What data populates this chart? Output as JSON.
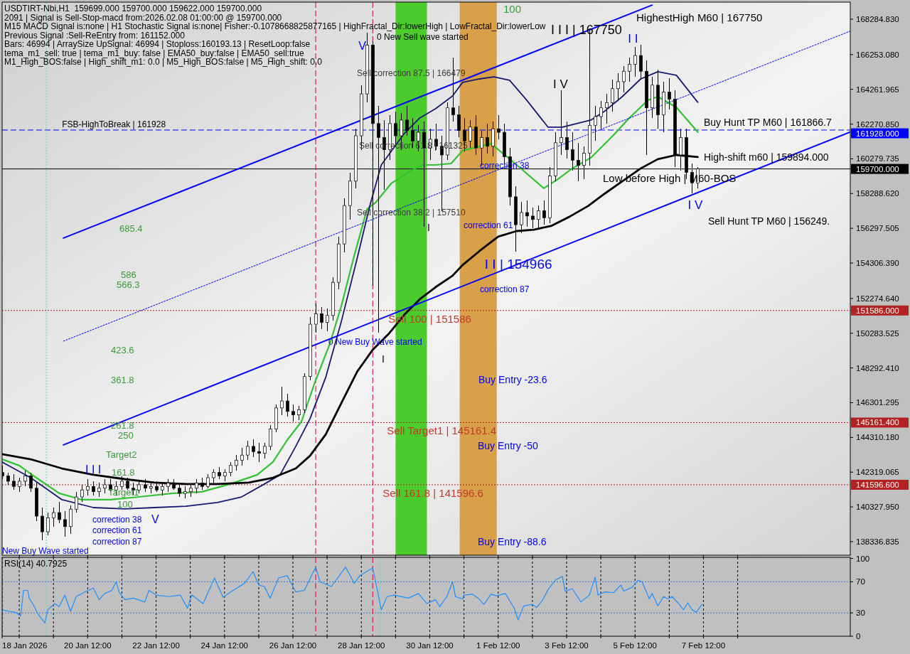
{
  "chart_data": [
    {
      "type": "candlestick",
      "title": "USDTIRT-Nbi,H1  159699.000 159700.000 159622.000 159700.000",
      "color": "#000000",
      "annotations": [
        "2091 | Signal is Sell-Stop-macd from:2026.02.08 01:00:00 @ 159700.000",
        "M15 MACD Signal is:none | H1 Stochastic Signal is:none| Fisher:-0.1078668825877165 | HighFractal_Dir:lowerHigh | LowFractal_Dir:lowerLow",
        "Previous Signal :Sell-ReEntry from: 161152.000",
        "Bars: 46994 | ArraySize UpSignal: 46994 | Stoploss:160193.13 | ResetLoop:false",
        "tema_m1_sell: true | tema_m1_buy: false | EMA50_buy:false | EMA50_sell:true",
        "M1_High_BOS:false | High_shift_m1: 0.0 | M5_High_BOS:false | M5_High_shift: 0.0",
        "0 New Sell wave started",
        "Sell correction 87.5 | 166479",
        "Sell correction 61.8 | 161325",
        "Sell correction 38.2 | 157510",
        "685.4",
        "586",
        "566.3",
        "423.6",
        "361.8",
        "261.8",
        "250",
        "Target2",
        "I I I",
        "161.8",
        "Target1",
        "100",
        "correction 38",
        "V",
        "correction 61",
        "correction 87",
        "New Buy Wave started",
        "0 New Buy Wave started",
        "I",
        "I",
        "correction 38",
        "correction 61",
        "correction 87",
        "Buy Entry -23.6",
        "Buy Entry -50",
        "Buy Entry -88.6",
        "100",
        "Low before High | M60-BOS",
        "High-shift m60 | 159894.000",
        "Buy Hunt TP M60 | 161866.7",
        "Sell Hunt TP M60 | 156249.",
        "HighestHigh M60 | 167750",
        {
          "text": "V",
          "x": "2026-01-28T16:00",
          "y": 167500
        },
        {
          "text": "FSB-HighToBreak | 161928",
          "x": "2026-01-19T18:00",
          "y": 161928
        },
        {
          "text": "Sell 100 | 151586",
          "x": "2026-01-29T07:00",
          "y": 151586
        },
        {
          "text": "Sell Target1 | 145161.4",
          "x": "2026-01-29T06:00",
          "y": 145161.4
        },
        {
          "text": "Sell 161.8 | 141596.6",
          "x": "2026-01-29T03:00",
          "y": 141596.6
        },
        {
          "text": "I I | 154966",
          "x": "2026-02-02T00:00",
          "y": 154966
        },
        {
          "text": "I I I | 167750",
          "x": "2026-02-04T04:00",
          "y": 167750
        },
        {
          "text": "I V",
          "x": "2026-02-03T08:00",
          "y": 164200
        },
        {
          "text": "I I",
          "x": "2026-02-05T12:00",
          "y": 166700
        },
        {
          "text": "I V",
          "x": "2026-02-07T04:00",
          "y": 158300
        }
      ],
      "x": [
        "2026-01-18T00:00",
        "2026-01-18T04:00",
        "2026-01-18T08:00",
        "2026-01-18T12:00",
        "2026-01-18T16:00",
        "2026-01-18T20:00",
        "2026-01-19T00:00",
        "2026-01-19T04:00",
        "2026-01-19T08:00",
        "2026-01-19T12:00",
        "2026-01-19T16:00",
        "2026-01-19T20:00",
        "2026-01-20T00:00",
        "2026-01-20T04:00",
        "2026-01-20T08:00",
        "2026-01-20T12:00",
        "2026-01-20T16:00",
        "2026-01-20T20:00",
        "2026-01-21T00:00",
        "2026-01-21T04:00",
        "2026-01-21T08:00",
        "2026-01-21T12:00",
        "2026-01-21T16:00",
        "2026-01-21T20:00",
        "2026-01-22T00:00",
        "2026-01-22T04:00",
        "2026-01-22T08:00",
        "2026-01-22T12:00",
        "2026-01-22T16:00",
        "2026-01-22T20:00",
        "2026-01-23T00:00",
        "2026-01-23T04:00",
        "2026-01-23T08:00",
        "2026-01-23T12:00",
        "2026-01-23T16:00",
        "2026-01-23T20:00",
        "2026-01-24T00:00",
        "2026-01-24T04:00",
        "2026-01-24T08:00",
        "2026-01-24T12:00",
        "2026-01-24T16:00",
        "2026-01-24T20:00",
        "2026-01-25T00:00",
        "2026-01-25T04:00",
        "2026-01-25T08:00",
        "2026-01-25T12:00",
        "2026-01-25T16:00",
        "2026-01-25T20:00",
        "2026-01-26T00:00",
        "2026-01-26T04:00",
        "2026-01-26T08:00",
        "2026-01-26T12:00",
        "2026-01-26T16:00",
        "2026-01-26T20:00",
        "2026-01-27T00:00",
        "2026-01-27T04:00",
        "2026-01-27T08:00",
        "2026-01-27T12:00",
        "2026-01-27T16:00",
        "2026-01-27T20:00",
        "2026-01-28T00:00",
        "2026-01-28T04:00",
        "2026-01-28T08:00",
        "2026-01-28T12:00",
        "2026-01-28T16:00",
        "2026-01-28T20:00",
        "2026-01-29T00:00",
        "2026-01-29T04:00",
        "2026-01-29T08:00",
        "2026-01-29T12:00",
        "2026-01-29T16:00",
        "2026-01-29T20:00",
        "2026-01-30T00:00",
        "2026-01-30T04:00",
        "2026-01-30T08:00",
        "2026-01-30T12:00",
        "2026-01-30T16:00",
        "2026-01-30T20:00",
        "2026-01-31T00:00",
        "2026-01-31T04:00",
        "2026-01-31T08:00",
        "2026-01-31T12:00",
        "2026-01-31T16:00",
        "2026-01-31T20:00",
        "2026-02-01T00:00",
        "2026-02-01T04:00",
        "2026-02-01T08:00",
        "2026-02-01T12:00",
        "2026-02-01T16:00",
        "2026-02-01T20:00",
        "2026-02-02T00:00",
        "2026-02-02T04:00",
        "2026-02-02T08:00",
        "2026-02-02T12:00",
        "2026-02-02T16:00",
        "2026-02-02T20:00",
        "2026-02-03T00:00",
        "2026-02-03T04:00",
        "2026-02-03T08:00",
        "2026-02-03T12:00",
        "2026-02-03T16:00",
        "2026-02-03T20:00",
        "2026-02-04T00:00",
        "2026-02-04T04:00",
        "2026-02-04T08:00",
        "2026-02-04T12:00",
        "2026-02-04T16:00",
        "2026-02-04T20:00",
        "2026-02-05T00:00",
        "2026-02-05T04:00",
        "2026-02-05T08:00",
        "2026-02-05T12:00",
        "2026-02-05T16:00",
        "2026-02-05T20:00",
        "2026-02-06T00:00",
        "2026-02-06T04:00",
        "2026-02-06T08:00",
        "2026-02-06T12:00",
        "2026-02-06T16:00",
        "2026-02-06T20:00",
        "2026-02-07T00:00",
        "2026-02-07T04:00",
        "2026-02-07T08:00"
      ],
      "ohlc": [
        [
          142300,
          142700,
          141900,
          142100
        ],
        [
          142100,
          142300,
          141600,
          141800
        ],
        [
          141800,
          142200,
          141300,
          141500
        ],
        [
          141500,
          142000,
          141200,
          141800
        ],
        [
          141800,
          142400,
          141500,
          142100
        ],
        [
          142100,
          142300,
          141200,
          141400
        ],
        [
          141400,
          141700,
          139500,
          139800
        ],
        [
          139800,
          140300,
          138400,
          138900
        ],
        [
          138900,
          140000,
          138700,
          139700
        ],
        [
          139700,
          140300,
          139200,
          140000
        ],
        [
          140000,
          140600,
          139400,
          139600
        ],
        [
          139600,
          140100,
          138600,
          139200
        ],
        [
          139200,
          140400,
          138800,
          140200
        ],
        [
          140200,
          141200,
          140000,
          140900
        ],
        [
          140900,
          141600,
          140600,
          141300
        ],
        [
          141300,
          141900,
          141000,
          141500
        ],
        [
          141500,
          141800,
          141000,
          141200
        ],
        [
          141200,
          141700,
          140900,
          141400
        ],
        [
          141400,
          141900,
          141100,
          141600
        ],
        [
          141600,
          141900,
          141200,
          141300
        ],
        [
          141300,
          141800,
          141000,
          141500
        ],
        [
          141500,
          142100,
          141300,
          141800
        ],
        [
          141800,
          142000,
          141300,
          141400
        ],
        [
          141400,
          141700,
          141000,
          141300
        ],
        [
          141300,
          141800,
          141100,
          141600
        ],
        [
          141600,
          141900,
          141200,
          141400
        ],
        [
          141400,
          141700,
          141100,
          141500
        ],
        [
          141500,
          141800,
          141200,
          141300
        ],
        [
          141300,
          141700,
          141000,
          141500
        ],
        [
          141500,
          141900,
          141200,
          141700
        ],
        [
          141700,
          141900,
          141300,
          141400
        ],
        [
          141400,
          141600,
          140900,
          141100
        ],
        [
          141100,
          141500,
          140800,
          141200
        ],
        [
          141200,
          141600,
          140900,
          141400
        ],
        [
          141400,
          141900,
          141100,
          141700
        ],
        [
          141700,
          142000,
          141300,
          141500
        ],
        [
          141500,
          142200,
          141400,
          142000
        ],
        [
          142000,
          142500,
          141700,
          142300
        ],
        [
          142300,
          142600,
          141900,
          142100
        ],
        [
          142100,
          142500,
          141800,
          142300
        ],
        [
          142300,
          142900,
          142100,
          142700
        ],
        [
          142700,
          143300,
          142400,
          143000
        ],
        [
          143000,
          143700,
          142700,
          143300
        ],
        [
          143300,
          144100,
          143000,
          143800
        ],
        [
          143800,
          144200,
          143200,
          143500
        ],
        [
          143500,
          144000,
          142900,
          143400
        ],
        [
          143400,
          144000,
          143100,
          143800
        ],
        [
          143800,
          145000,
          143600,
          144800
        ],
        [
          144800,
          146200,
          144600,
          146000
        ],
        [
          146000,
          147200,
          145600,
          146400
        ],
        [
          146400,
          146800,
          145500,
          145800
        ],
        [
          145800,
          146200,
          145200,
          145600
        ],
        [
          145600,
          146100,
          145300,
          145900
        ],
        [
          145900,
          148000,
          145700,
          147800
        ],
        [
          147800,
          151200,
          147600,
          150800
        ],
        [
          150800,
          152000,
          150300,
          151400
        ],
        [
          151400,
          151800,
          150500,
          150900
        ],
        [
          150900,
          151700,
          150400,
          151300
        ],
        [
          151300,
          153500,
          151000,
          153200
        ],
        [
          153200,
          155800,
          152800,
          155400
        ],
        [
          155400,
          158000,
          154900,
          157600
        ],
        [
          157600,
          159500,
          156800,
          159000
        ],
        [
          159000,
          162000,
          158600,
          161600
        ],
        [
          161600,
          164500,
          160800,
          164000
        ],
        [
          164000,
          167500,
          163500,
          166800
        ],
        [
          166800,
          167000,
          153000,
          162300
        ],
        [
          162300,
          163300,
          150300,
          161500
        ],
        [
          161500,
          162500,
          158500,
          160800
        ],
        [
          160800,
          162800,
          160200,
          162300
        ],
        [
          162300,
          163000,
          161000,
          161600
        ],
        [
          161600,
          162900,
          160800,
          162500
        ],
        [
          162500,
          163300,
          161600,
          161900
        ],
        [
          161900,
          162600,
          160900,
          161300
        ],
        [
          161300,
          162200,
          160700,
          161800
        ],
        [
          161800,
          162400,
          156400,
          160900
        ],
        [
          160900,
          162000,
          160200,
          161400
        ],
        [
          161400,
          162300,
          160800,
          161000
        ],
        [
          161000,
          161600,
          157300,
          160500
        ],
        [
          160500,
          163500,
          160200,
          163200
        ],
        [
          163200,
          166100,
          162400,
          162800
        ],
        [
          162800,
          163300,
          161500,
          161900
        ],
        [
          161900,
          162600,
          160700,
          161300
        ],
        [
          161300,
          162500,
          160900,
          162100
        ],
        [
          162100,
          162800,
          160500,
          160900
        ],
        [
          160900,
          161900,
          159900,
          161500
        ],
        [
          161500,
          162300,
          160600,
          161000
        ],
        [
          161000,
          162400,
          160400,
          162000
        ],
        [
          162000,
          162800,
          161400,
          161800
        ],
        [
          161800,
          162300,
          160000,
          160400
        ],
        [
          160400,
          160900,
          157600,
          158100
        ],
        [
          158100,
          158700,
          154966,
          156500
        ],
        [
          156500,
          157800,
          156000,
          157200
        ],
        [
          157200,
          157900,
          156400,
          157000
        ],
        [
          157000,
          157500,
          156300,
          156800
        ],
        [
          156800,
          157600,
          156300,
          157300
        ],
        [
          157300,
          157900,
          156500,
          156900
        ],
        [
          156900,
          159800,
          156600,
          159300
        ],
        [
          159300,
          161800,
          159000,
          161200
        ],
        [
          161200,
          164200,
          160500,
          161500
        ],
        [
          161500,
          162400,
          160300,
          160800
        ],
        [
          160800,
          161800,
          159600,
          160200
        ],
        [
          160200,
          161200,
          159000,
          159900
        ],
        [
          159900,
          161000,
          159100,
          160600
        ],
        [
          160600,
          167750,
          159900,
          162200
        ],
        [
          162200,
          163300,
          161300,
          162700
        ],
        [
          162700,
          163600,
          162000,
          163200
        ],
        [
          163200,
          164000,
          162300,
          163500
        ],
        [
          163500,
          164800,
          163000,
          164300
        ],
        [
          164300,
          165200,
          163600,
          164700
        ],
        [
          164700,
          165600,
          164100,
          165300
        ],
        [
          165300,
          166100,
          164700,
          165700
        ],
        [
          165700,
          166700,
          165000,
          166200
        ],
        [
          166200,
          166800,
          164800,
          165300
        ],
        [
          165300,
          165900,
          160500,
          163200
        ],
        [
          163200,
          165000,
          162600,
          164500
        ],
        [
          164500,
          165400,
          162000,
          162800
        ],
        [
          162800,
          164700,
          161800,
          164100
        ],
        [
          164100,
          164900,
          163100,
          163700
        ],
        [
          163700,
          164200,
          159800,
          160500
        ],
        [
          160500,
          162000,
          159600,
          161500
        ],
        [
          161500,
          162000,
          159100,
          159500
        ],
        [
          159500,
          160000,
          158300,
          158900
        ],
        [
          158900,
          159800,
          158600,
          159700
        ]
      ],
      "series": [
        {
          "type": "line",
          "color": "#33c233",
          "x": [
            "2026-01-18T00:00",
            "2026-01-18T12:00",
            "2026-01-19T00:00",
            "2026-01-19T16:00",
            "2026-01-20T08:00",
            "2026-01-21T04:00",
            "2026-01-22T00:00",
            "2026-01-23T00:00",
            "2026-01-23T20:00",
            "2026-01-24T16:00",
            "2026-01-25T11:00",
            "2026-01-25T22:00",
            "2026-01-26T08:00",
            "2026-01-26T18:00",
            "2026-01-27T03:00",
            "2026-01-27T14:00",
            "2026-01-27T22:00",
            "2026-01-28T07:00",
            "2026-01-28T16:00",
            "2026-01-28T22:00",
            "2026-01-29T09:00",
            "2026-01-29T22:00",
            "2026-01-30T07:00",
            "2026-01-30T16:00",
            "2026-01-31T03:00",
            "2026-01-31T11:00",
            "2026-02-01T07:00",
            "2026-02-02T01:00",
            "2026-02-02T20:00",
            "2026-02-03T06:00",
            "2026-02-03T16:00",
            "2026-02-04T05:00",
            "2026-02-04T20:00",
            "2026-02-05T08:00",
            "2026-02-05T21:00",
            "2026-02-06T04:00",
            "2026-02-06T17:00",
            "2026-02-07T08:00"
          ],
          "values": [
            143060,
            142700,
            142000,
            141110,
            140740,
            140740,
            140900,
            141110,
            141190,
            141640,
            142170,
            142900,
            144160,
            145220,
            147380,
            149700,
            151860,
            154720,
            157400,
            157770,
            158870,
            159570,
            159930,
            159930,
            160010,
            160750,
            161150,
            159930,
            158590,
            159120,
            159730,
            160340,
            161560,
            162620,
            163640,
            163840,
            163230,
            161810
          ]
        },
        {
          "type": "line",
          "color": "#191970",
          "x": [
            "2026-01-18T00:00",
            "2026-01-18T20:00",
            "2026-01-19T18:00",
            "2026-01-20T16:00",
            "2026-01-21T14:00",
            "2026-01-22T11:00",
            "2026-01-23T09:00",
            "2026-01-24T07:00",
            "2026-01-25T00:00",
            "2026-01-25T16:00",
            "2026-01-26T03:00",
            "2026-01-26T14:00",
            "2026-01-27T00:00",
            "2026-01-27T11:00",
            "2026-01-27T22:00",
            "2026-01-28T09:00",
            "2026-01-28T18:00",
            "2026-01-29T02:00",
            "2026-01-29T18:00",
            "2026-01-30T05:00",
            "2026-01-30T16:00",
            "2026-01-31T04:00",
            "2026-01-31T11:00",
            "2026-01-31T23:00",
            "2026-02-01T09:00",
            "2026-02-01T20:00",
            "2026-02-02T08:00",
            "2026-02-02T23:00",
            "2026-02-03T09:00",
            "2026-02-03T19:00",
            "2026-02-04T05:00",
            "2026-02-04T15:00",
            "2026-02-05T03:00",
            "2026-02-05T16:00",
            "2026-02-06T04:00",
            "2026-02-06T17:00",
            "2026-02-07T08:00"
          ],
          "values": [
            142900,
            142000,
            140740,
            140290,
            140210,
            140290,
            140370,
            140580,
            140900,
            141640,
            142170,
            143800,
            145390,
            147750,
            150970,
            154550,
            157610,
            159930,
            161720,
            162620,
            163150,
            163880,
            164660,
            164860,
            164980,
            164780,
            163640,
            162090,
            162090,
            162300,
            162500,
            163030,
            163840,
            164860,
            165270,
            165070,
            163520
          ]
        },
        {
          "type": "line",
          "color": "#000000",
          "x": [
            "2026-01-18T00:00",
            "2026-01-18T20:00",
            "2026-01-19T18:00",
            "2026-01-20T16:00",
            "2026-01-21T14:00",
            "2026-01-22T11:00",
            "2026-01-23T09:00",
            "2026-01-24T07:00",
            "2026-01-25T05:00",
            "2026-01-25T22:00",
            "2026-01-26T14:00",
            "2026-01-27T00:00",
            "2026-01-27T11:00",
            "2026-01-27T22:00",
            "2026-01-28T09:00",
            "2026-01-28T20:00",
            "2026-01-29T07:00",
            "2026-01-29T18:00",
            "2026-01-30T05:00",
            "2026-01-30T16:00",
            "2026-01-31T04:00",
            "2026-01-31T11:00",
            "2026-01-31T23:00",
            "2026-02-01T12:00",
            "2026-02-02T01:00",
            "2026-02-02T13:00",
            "2026-02-03T01:00",
            "2026-02-03T14:00",
            "2026-02-04T03:00",
            "2026-02-04T15:00",
            "2026-02-05T03:00",
            "2026-02-05T16:00",
            "2026-02-06T04:00",
            "2026-02-06T17:00",
            "2026-02-07T08:00"
          ],
          "values": [
            143350,
            143060,
            142530,
            142170,
            141920,
            141720,
            141640,
            141640,
            141720,
            142000,
            142530,
            143260,
            144480,
            146280,
            148070,
            149340,
            150230,
            151330,
            152230,
            152920,
            153580,
            154190,
            155000,
            155820,
            156140,
            156220,
            156430,
            156960,
            157570,
            158300,
            158990,
            159730,
            160260,
            160500,
            160380
          ]
        },
        {
          "type": "line",
          "color": "#0000ff",
          "x": [
            "2026-01-19T19:00",
            "2026-02-06T00:00"
          ],
          "values": [
            155740,
            169090
          ]
        },
        {
          "type": "line",
          "color": "#0000ff",
          "x": [
            "2026-01-19T19:00",
            "2026-02-11T19:00"
          ],
          "values": [
            143880,
            161820
          ]
        },
        {
          "type": "line",
          "color": "#0000ff",
          "line_style": "dotted",
          "x": [
            "2026-01-19T19:00",
            "2026-02-11T19:00"
          ],
          "values": [
            149830,
            167600
          ]
        }
      ],
      "xlim": [
        "2026-01-18T00:00",
        "2026-02-11T19:00"
      ],
      "ylim": [
        137560,
        169260
      ],
      "xticks": [
        {
          "value": "2026-01-18T12:00",
          "label": null
        },
        {
          "value": "2026-01-19T12:00",
          "label": null
        },
        {
          "value": "2026-01-20T12:00",
          "label": null
        },
        {
          "value": "2026-01-21T12:00",
          "label": null
        },
        {
          "value": "2026-01-22T12:00",
          "label": null
        },
        {
          "value": "2026-01-23T12:00",
          "label": null
        },
        {
          "value": "2026-01-24T12:00",
          "label": null
        },
        {
          "value": "2026-01-25T12:00",
          "label": null
        },
        {
          "value": "2026-01-26T12:00",
          "label": null
        },
        {
          "value": "2026-01-27T12:00",
          "label": null
        },
        {
          "value": "2026-01-28T12:00",
          "label": null
        },
        {
          "value": "2026-01-29T12:00",
          "label": null
        },
        {
          "value": "2026-01-30T12:00",
          "label": null
        },
        {
          "value": "2026-01-31T12:00",
          "label": null
        },
        {
          "value": "2026-02-01T12:00",
          "label": null
        },
        {
          "value": "2026-02-02T12:00",
          "label": null
        },
        {
          "value": "2026-02-03T12:00",
          "label": null
        },
        {
          "value": "2026-02-04T12:00",
          "label": null
        },
        {
          "value": "2026-02-05T12:00",
          "label": null
        },
        {
          "value": "2026-02-06T12:00",
          "label": null
        },
        {
          "value": "2026-02-07T12:00",
          "label": null
        },
        {
          "value": "2026-02-08T12:00",
          "label": null
        }
      ],
      "yticks": [
        {
          "value": 168284.83,
          "label": "168284.830"
        },
        {
          "value": 166253.08,
          "label": "166253.080"
        },
        {
          "value": 164261.965,
          "label": "164261.965"
        },
        {
          "value": 162270.85,
          "label": "162270.850"
        },
        {
          "value": 160279.735,
          "label": "160279.735"
        },
        {
          "value": 158288.62,
          "label": "158288.620"
        },
        {
          "value": 156297.505,
          "label": "156297.505"
        },
        {
          "value": 154306.39,
          "label": "154306.390"
        },
        {
          "value": 152274.64,
          "label": "152274.640"
        },
        {
          "value": 150283.525,
          "label": "150283.525"
        },
        {
          "value": 148292.41,
          "label": "148292.410"
        },
        {
          "value": 146301.295,
          "label": "146301.295"
        },
        {
          "value": 144310.18,
          "label": "144310.180"
        },
        {
          "value": 142319.065,
          "label": "142319.065"
        },
        {
          "value": 140327.95,
          "label": "140327.950"
        },
        {
          "value": 138336.835,
          "label": "138336.835"
        }
      ],
      "tick_labels": "y",
      "ref_lines": [
        {
          "axis": "y",
          "value": 161928,
          "label": "161928.000",
          "color": "#0000ff",
          "line_style": "dashed"
        },
        {
          "axis": "y",
          "value": 159700,
          "label": "159700.000",
          "color": "#000000",
          "line_style": "solid"
        },
        {
          "axis": "y",
          "value": 151586,
          "label": "151586.000",
          "color": "#b22222",
          "line_style": "dotted"
        },
        {
          "axis": "y",
          "value": 145161.4,
          "label": "145161.400",
          "color": "#b22222",
          "line_style": "dotted"
        },
        {
          "axis": "y",
          "value": 141596.6,
          "label": "141596.600",
          "color": "#b22222",
          "line_style": "dotted"
        },
        {
          "axis": "x",
          "value": "2026-01-19T07:00",
          "color": "#66cccc",
          "line_style": "dotted"
        },
        {
          "axis": "x",
          "value": "2026-01-27T04:00",
          "color": "#cc0044",
          "line_style": "dashed"
        },
        {
          "axis": "x",
          "value": "2026-01-28T20:00",
          "color": "#cc0044",
          "line_style": "dashed"
        }
      ],
      "bands": [
        {
          "axis": "x",
          "from": "2026-01-29T12:00",
          "to": "2026-01-30T10:00",
          "color": "#4ccc2c"
        },
        {
          "axis": "x",
          "from": "2026-01-31T09:00",
          "to": "2026-02-01T11:00",
          "color": "#d8a048"
        }
      ]
    },
    {
      "type": "line",
      "title": "RSI(14) 40.7925",
      "color": "#1e90ff",
      "x": [
        "2026-01-18T00:00",
        "2026-01-18T05:00",
        "2026-01-18T09:00",
        "2026-01-18T13:00",
        "2026-01-18T15:00",
        "2026-01-18T18:00",
        "2026-01-18T19:00",
        "2026-01-18T22:00",
        "2026-01-19T01:00",
        "2026-01-19T06:00",
        "2026-01-19T08:00",
        "2026-01-19T13:00",
        "2026-01-19T16:00",
        "2026-01-19T20:00",
        "2026-01-20T00:00",
        "2026-01-20T04:00",
        "2026-01-20T10:00",
        "2026-01-20T16:00",
        "2026-01-20T20:00",
        "2026-01-21T00:00",
        "2026-01-21T05:00",
        "2026-01-21T08:00",
        "2026-01-21T10:00",
        "2026-01-21T14:00",
        "2026-01-21T20:00",
        "2026-01-22T04:00",
        "2026-01-22T07:00",
        "2026-01-22T12:00",
        "2026-01-22T21:00",
        "2026-01-23T05:00",
        "2026-01-23T10:00",
        "2026-01-23T13:00",
        "2026-01-23T21:00",
        "2026-01-24T05:00",
        "2026-01-24T11:00",
        "2026-01-24T18:00",
        "2026-01-25T02:00",
        "2026-01-25T08:00",
        "2026-01-25T12:00",
        "2026-01-25T16:00",
        "2026-01-25T20:00",
        "2026-01-26T02:00",
        "2026-01-26T08:00",
        "2026-01-26T14:00",
        "2026-01-26T20:00",
        "2026-01-27T04:00",
        "2026-01-27T07:00",
        "2026-01-27T15:00",
        "2026-01-28T01:00",
        "2026-01-28T07:00",
        "2026-01-28T11:00",
        "2026-01-28T20:00",
        "2026-01-28T21:00",
        "2026-01-29T02:00",
        "2026-01-29T06:00",
        "2026-01-29T11:00",
        "2026-01-29T21:00",
        "2026-01-30T04:00",
        "2026-01-30T10:00",
        "2026-01-30T16:00",
        "2026-01-30T19:00",
        "2026-01-31T00:00",
        "2026-01-31T04:00",
        "2026-01-31T06:00",
        "2026-01-31T11:00",
        "2026-01-31T12:00",
        "2026-01-31T18:00",
        "2026-01-31T22:00",
        "2026-02-01T02:00",
        "2026-02-01T07:00",
        "2026-02-01T11:00",
        "2026-02-01T17:00",
        "2026-02-01T23:00",
        "2026-02-02T02:00",
        "2026-02-02T06:00",
        "2026-02-02T12:00",
        "2026-02-02T15:00",
        "2026-02-02T19:00",
        "2026-02-02T23:00",
        "2026-02-03T04:00",
        "2026-02-03T09:00",
        "2026-02-03T11:00",
        "2026-02-03T16:00",
        "2026-02-03T22:00",
        "2026-02-04T04:00",
        "2026-02-04T08:00",
        "2026-02-04T10:00",
        "2026-02-04T15:00",
        "2026-02-04T21:00",
        "2026-02-05T02:00",
        "2026-02-05T04:00",
        "2026-02-05T10:00",
        "2026-02-05T14:00",
        "2026-02-05T17:00",
        "2026-02-05T22:00",
        "2026-02-06T00:00",
        "2026-02-06T04:00",
        "2026-02-06T08:00",
        "2026-02-06T11:00",
        "2026-02-06T14:00",
        "2026-02-06T19:00",
        "2026-02-06T22:00",
        "2026-02-07T01:00",
        "2026-02-07T04:00",
        "2026-02-07T07:00",
        "2026-02-07T11:00"
      ],
      "values": [
        34,
        32,
        31,
        26,
        59,
        59,
        49,
        40,
        29,
        17,
        34,
        42,
        38,
        53,
        32,
        51,
        57,
        62,
        47,
        55,
        59,
        70,
        57,
        47,
        49,
        44,
        59,
        53,
        51,
        53,
        36,
        53,
        42,
        75,
        50,
        59,
        68,
        83,
        66,
        64,
        49,
        75,
        78,
        57,
        59,
        89,
        70,
        64,
        89,
        68,
        78,
        88,
        79,
        34,
        51,
        53,
        49,
        55,
        42,
        47,
        38,
        51,
        70,
        51,
        48,
        53,
        54,
        49,
        41,
        54,
        52,
        55,
        37,
        21,
        39,
        41,
        37,
        46,
        60,
        72,
        77,
        58,
        61,
        44,
        53,
        76,
        53,
        57,
        56,
        66,
        58,
        63,
        72,
        70,
        48,
        55,
        39,
        51,
        48,
        51,
        41,
        34,
        43,
        34,
        31,
        41
      ],
      "xlim": [
        "2026-01-18T00:00",
        "2026-02-11T19:00"
      ],
      "ylim": [
        0,
        101.5
      ],
      "yticks": [
        0,
        30,
        70,
        100
      ],
      "xticks": [
        {
          "value": "2026-01-18T00:00",
          "label": "18 Jan 2026"
        },
        {
          "value": "2026-01-18T12:00",
          "label": null
        },
        {
          "value": "2026-01-19T12:00",
          "label": null
        },
        {
          "value": "2026-01-20T12:00",
          "label": "20 Jan 12:00"
        },
        {
          "value": "2026-01-21T12:00",
          "label": null
        },
        {
          "value": "2026-01-22T12:00",
          "label": "22 Jan 12:00"
        },
        {
          "value": "2026-01-23T12:00",
          "label": null
        },
        {
          "value": "2026-01-24T12:00",
          "label": "24 Jan 12:00"
        },
        {
          "value": "2026-01-25T12:00",
          "label": null
        },
        {
          "value": "2026-01-26T12:00",
          "label": "26 Jan 12:00"
        },
        {
          "value": "2026-01-27T12:00",
          "label": null
        },
        {
          "value": "2026-01-28T12:00",
          "label": "28 Jan 12:00"
        },
        {
          "value": "2026-01-29T12:00",
          "label": null
        },
        {
          "value": "2026-01-30T12:00",
          "label": "30 Jan 12:00"
        },
        {
          "value": "2026-01-31T12:00",
          "label": null
        },
        {
          "value": "2026-02-01T12:00",
          "label": "1 Feb 12:00"
        },
        {
          "value": "2026-02-02T12:00",
          "label": null
        },
        {
          "value": "2026-02-03T12:00",
          "label": "3 Feb 12:00"
        },
        {
          "value": "2026-02-04T12:00",
          "label": null
        },
        {
          "value": "2026-02-05T12:00",
          "label": "5 Feb 12:00"
        },
        {
          "value": "2026-02-06T12:00",
          "label": null
        },
        {
          "value": "2026-02-07T12:00",
          "label": "7 Feb 12:00"
        },
        {
          "value": "2026-02-08T12:00",
          "label": null
        }
      ],
      "grid": "x",
      "ref_lines": [
        {
          "axis": "y",
          "value": 70,
          "color": "#3a78d8",
          "line_style": "dotted"
        },
        {
          "axis": "y",
          "value": 30,
          "color": "#3a78d8",
          "line_style": "dotted"
        },
        {
          "axis": "x",
          "value": "2026-01-19T07:00",
          "color": "#66cccc",
          "line_style": "dotted"
        },
        {
          "axis": "x",
          "value": "2026-01-29T01:00",
          "color": "#66cccc",
          "line_style": "dotted"
        },
        {
          "axis": "x",
          "value": "2026-01-27T04:00",
          "color": "#cc0044",
          "line_style": "dashed"
        },
        {
          "axis": "x",
          "value": "2026-01-28T20:00",
          "color": "#cc0044",
          "line_style": "dashed"
        }
      ]
    }
  ]
}
